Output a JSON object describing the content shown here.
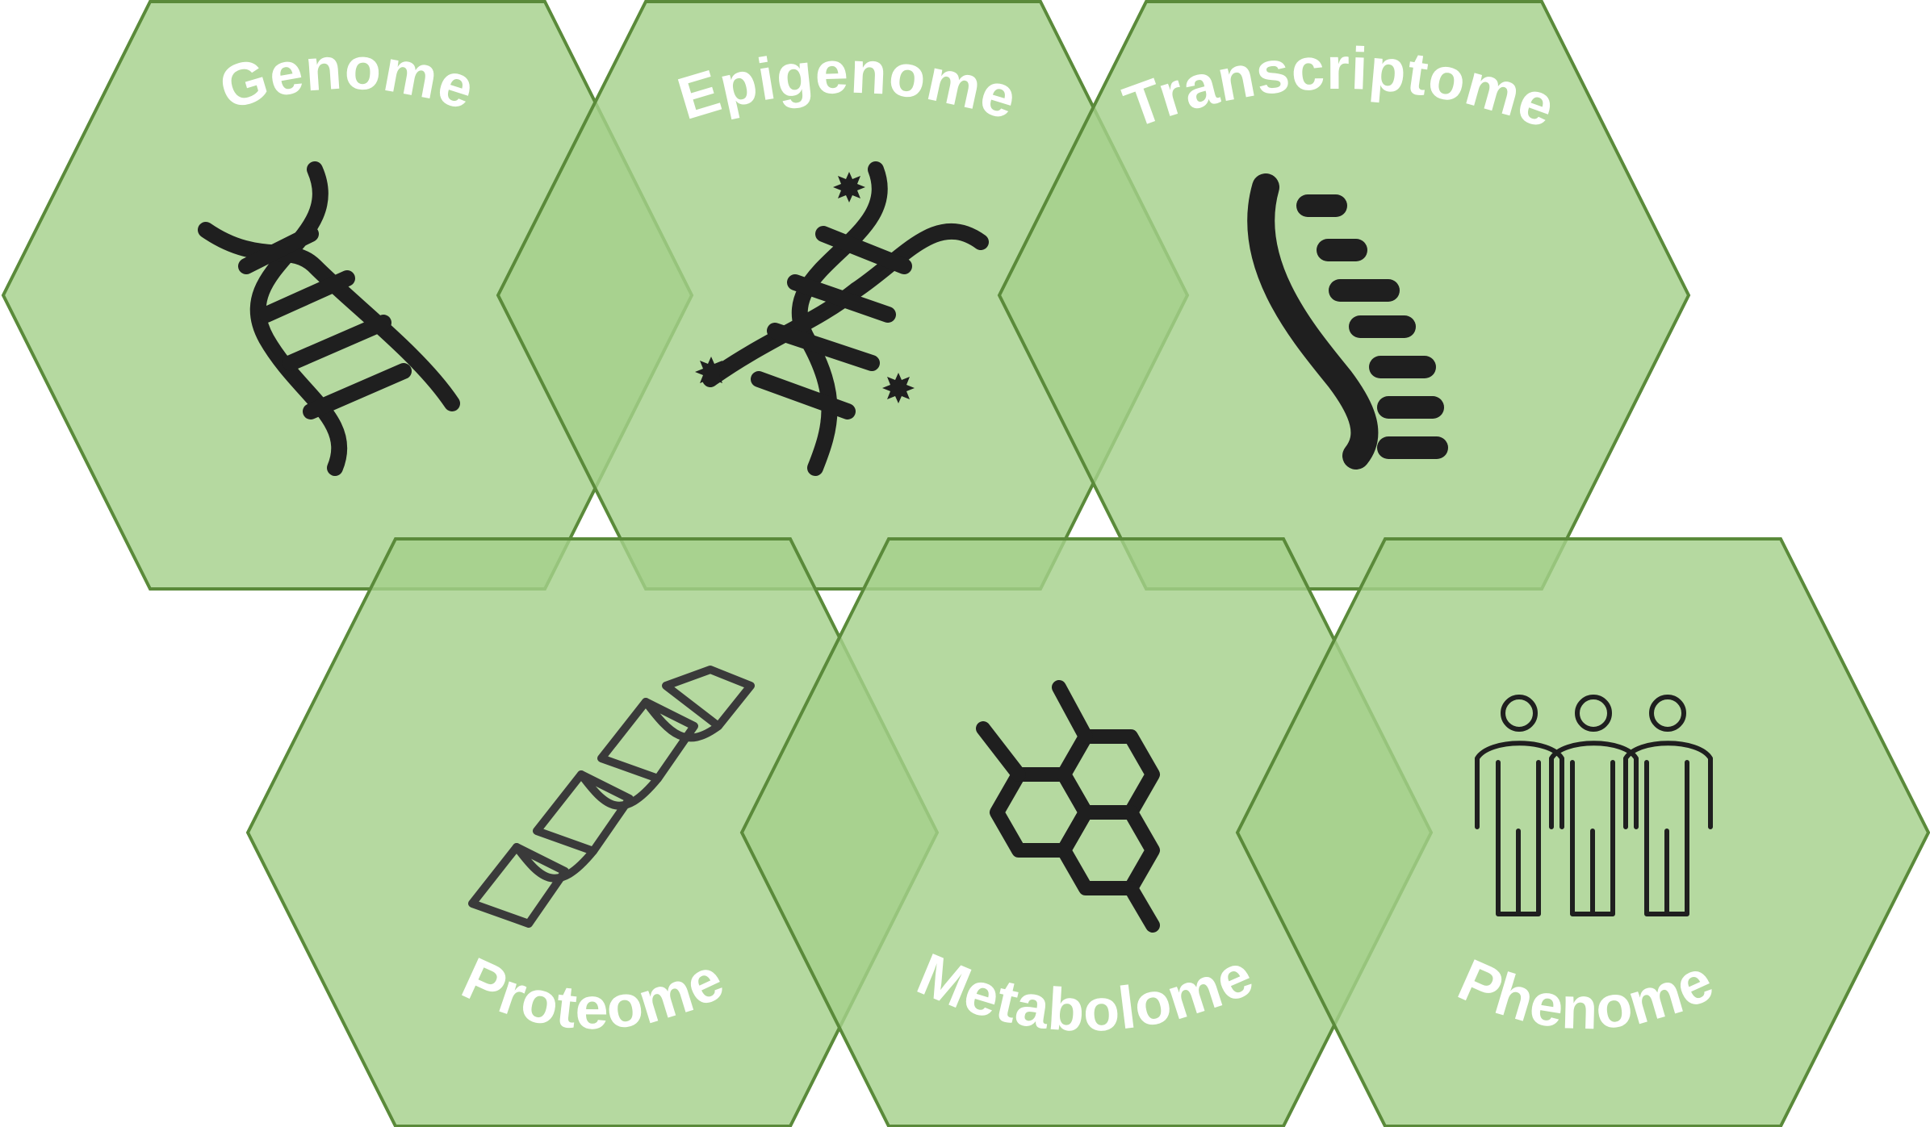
{
  "diagram": {
    "colors": {
      "hex_fill": "#a5d18b",
      "hex_stroke": "#5a8a3a",
      "label": "#ffffff",
      "icon": "#1f1f1f"
    },
    "hexes": [
      {
        "id": "genome",
        "label": "Genome",
        "icon": "dna-double-helix-icon"
      },
      {
        "id": "epigenome",
        "label": "Epigenome",
        "icon": "methylated-dna-icon"
      },
      {
        "id": "transcriptome",
        "label": "Transcriptome",
        "icon": "rna-strand-icon"
      },
      {
        "id": "proteome",
        "label": "Proteome",
        "icon": "protein-helix-ribbon-icon"
      },
      {
        "id": "metabolome",
        "label": "Metabolome",
        "icon": "molecule-rings-icon"
      },
      {
        "id": "phenome",
        "label": "Phenome",
        "icon": "people-group-icon"
      }
    ]
  }
}
